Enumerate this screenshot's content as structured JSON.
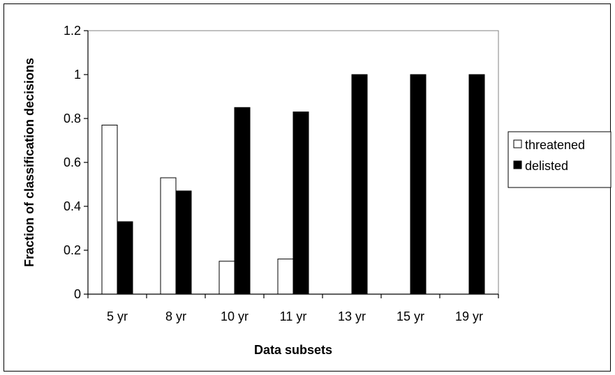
{
  "chart_data": {
    "type": "bar",
    "categories": [
      "5 yr",
      "8 yr",
      "10 yr",
      "11 yr",
      "13 yr",
      "15 yr",
      "19 yr"
    ],
    "series": [
      {
        "name": "threatened",
        "values": [
          0.77,
          0.53,
          0.15,
          0.16,
          0,
          0,
          0
        ],
        "color": "#ffffff"
      },
      {
        "name": "delisted",
        "values": [
          0.33,
          0.47,
          0.85,
          0.83,
          1,
          1,
          1
        ],
        "color": "#000000"
      }
    ],
    "title": "",
    "xlabel": "Data subsets",
    "ylabel": "Fraction of classification decisions",
    "ylim": [
      0,
      1.2
    ],
    "yticks": [
      "0",
      "0.2",
      "0.4",
      "0.6",
      "0.8",
      "1",
      "1.2"
    ],
    "grid": false,
    "legend_position": "right"
  }
}
